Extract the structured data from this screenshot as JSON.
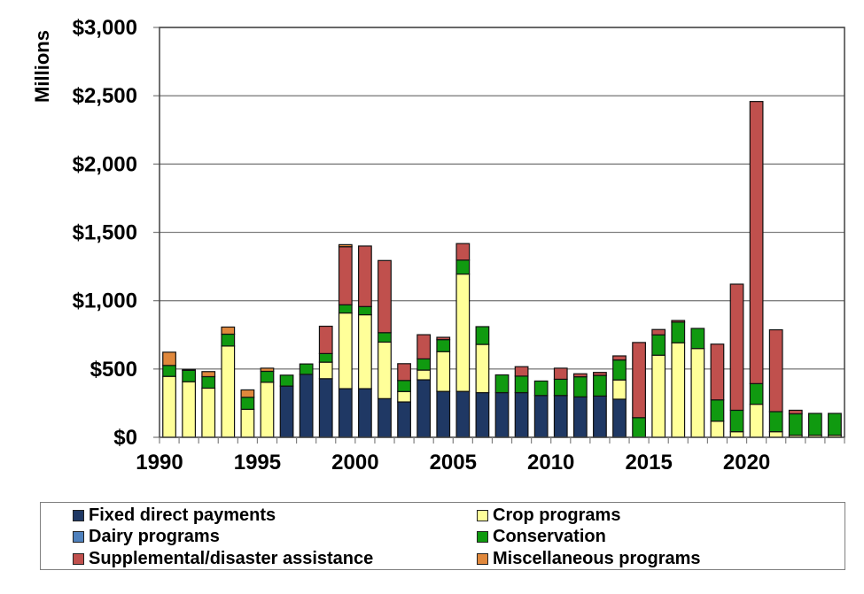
{
  "chart_data": {
    "type": "bar",
    "stacked": true,
    "title": "",
    "xlabel": "",
    "ylabel": "Millions",
    "ylim": [
      0,
      3000
    ],
    "yticks": [
      0,
      500,
      1000,
      1500,
      2000,
      2500,
      3000
    ],
    "ytick_labels": [
      "$0",
      "$500",
      "$1,000",
      "$1,500",
      "$2,000",
      "$2,500",
      "$3,000"
    ],
    "xtick_labels": [
      "1990",
      "1995",
      "2000",
      "2005",
      "2010",
      "2015",
      "2020"
    ],
    "grid": true,
    "legend_position": "bottom",
    "categories": [
      "1990",
      "1991",
      "1992",
      "1993",
      "1994",
      "1995",
      "1996",
      "1997",
      "1998",
      "1999",
      "2000",
      "2001",
      "2002",
      "2003",
      "2004",
      "2005",
      "2006",
      "2007",
      "2008",
      "2009",
      "2010",
      "2011",
      "2012",
      "2013",
      "2014",
      "2015",
      "2016",
      "2017",
      "2018",
      "2019",
      "2020",
      "2021",
      "2022",
      "2023",
      "2024"
    ],
    "series": [
      {
        "name": "Fixed direct payments",
        "color": "#1F3864",
        "values": [
          0,
          0,
          0,
          0,
          0,
          0,
          375,
          461,
          429,
          356,
          356,
          283,
          259,
          421,
          336,
          336,
          327,
          327,
          327,
          306,
          306,
          296,
          302,
          279,
          0,
          0,
          0,
          0,
          0,
          0,
          0,
          0,
          0,
          0,
          0
        ]
      },
      {
        "name": "Dairy programs",
        "color": "#4F81BD",
        "values": [
          0,
          0,
          0,
          0,
          0,
          0,
          0,
          0,
          0,
          0,
          0,
          0,
          0,
          0,
          0,
          0,
          0,
          0,
          0,
          0,
          0,
          0,
          0,
          0,
          0,
          0,
          0,
          0,
          0,
          0,
          0,
          0,
          0,
          0,
          0
        ]
      },
      {
        "name": "Crop programs",
        "color": "#FFFF99",
        "values": [
          446,
          407,
          360,
          668,
          205,
          403,
          0,
          0,
          121,
          554,
          541,
          414,
          76,
          71,
          291,
          859,
          353,
          0,
          0,
          0,
          0,
          0,
          0,
          141,
          0,
          601,
          692,
          650,
          118,
          41,
          242,
          41,
          15,
          15,
          15
        ]
      },
      {
        "name": "Conservation",
        "color": "#109A10",
        "values": [
          80,
          83,
          84,
          87,
          88,
          80,
          80,
          76,
          63,
          60,
          60,
          69,
          81,
          82,
          88,
          102,
          130,
          130,
          121,
          106,
          119,
          147,
          151,
          146,
          144,
          149,
          151,
          147,
          156,
          157,
          151,
          147,
          157,
          160,
          160
        ]
      },
      {
        "name": "Supplemental/disaster assistance",
        "color": "#C0504D",
        "values": [
          0,
          6,
          0,
          0,
          0,
          0,
          0,
          0,
          200,
          425,
          443,
          528,
          123,
          177,
          17,
          121,
          0,
          0,
          69,
          0,
          81,
          22,
          22,
          30,
          550,
          39,
          12,
          0,
          408,
          923,
          2065,
          599,
          26,
          0,
          0
        ]
      },
      {
        "name": "Miscellaneous programs",
        "color": "#E0883C",
        "values": [
          97,
          0,
          37,
          52,
          54,
          23,
          0,
          0,
          0,
          15,
          0,
          0,
          0,
          0,
          0,
          0,
          0,
          0,
          0,
          0,
          0,
          0,
          0,
          0,
          0,
          0,
          0,
          0,
          0,
          0,
          0,
          0,
          0,
          0,
          0
        ]
      }
    ]
  },
  "legend": {
    "items": [
      {
        "label": "Fixed direct payments",
        "color": "#1F3864"
      },
      {
        "label": "Crop programs",
        "color": "#FFFF99"
      },
      {
        "label": "Dairy programs",
        "color": "#4F81BD"
      },
      {
        "label": "Conservation",
        "color": "#109A10"
      },
      {
        "label": "Supplemental/disaster assistance",
        "color": "#C0504D"
      },
      {
        "label": "Miscellaneous programs",
        "color": "#E0883C"
      }
    ]
  }
}
